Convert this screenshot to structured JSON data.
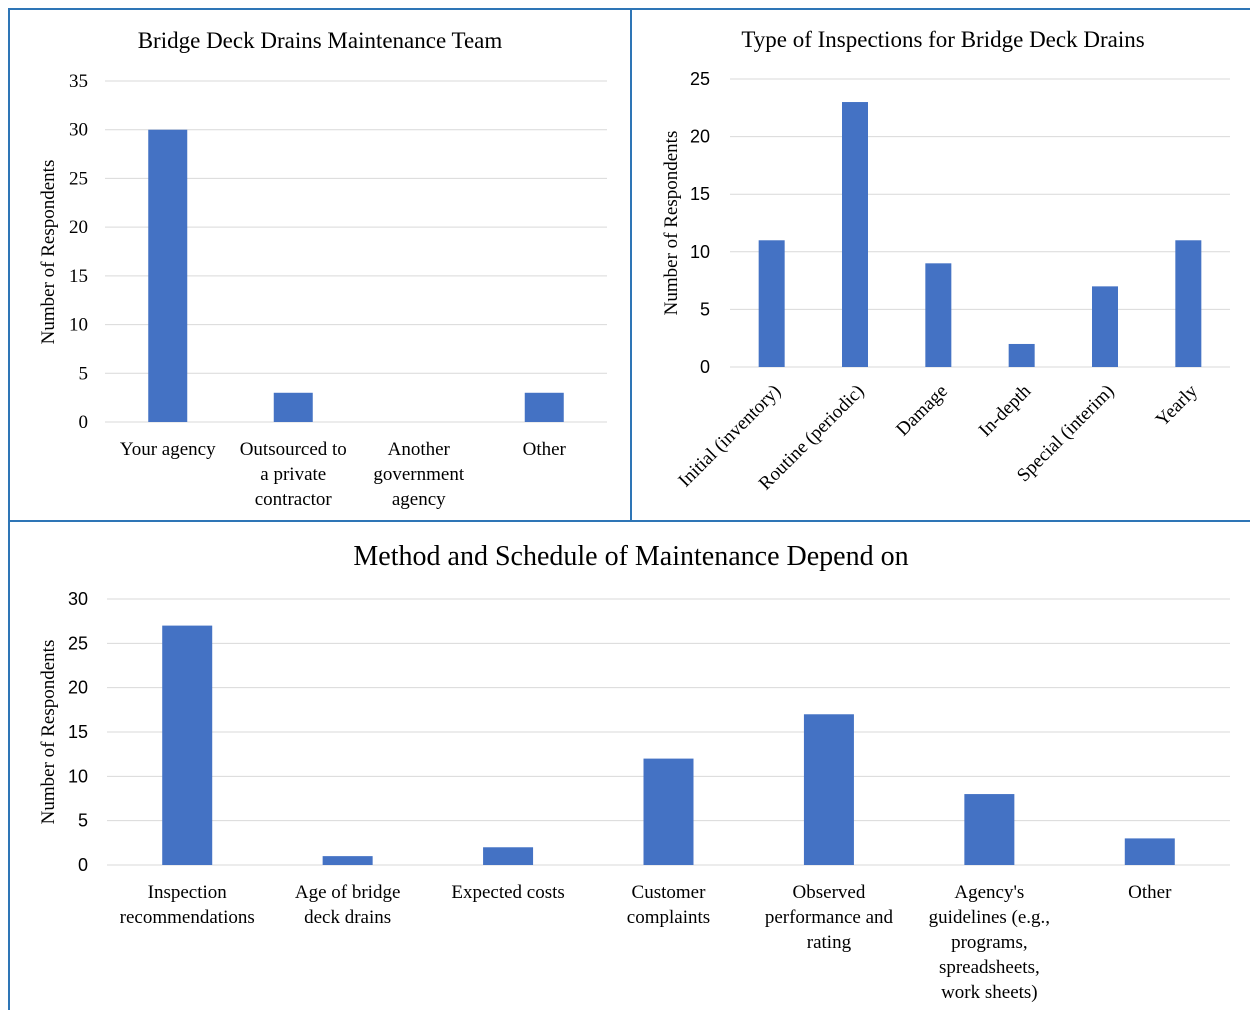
{
  "chart_data": [
    {
      "id": "maintenance_team",
      "type": "bar",
      "title": "Bridge Deck Drains Maintenance Team",
      "xlabel": "",
      "ylabel": "Number of Respondents",
      "categories": [
        [
          "Your agency"
        ],
        [
          "Outsourced to",
          "a private",
          "contractor"
        ],
        [
          "Another",
          "government",
          "agency"
        ],
        [
          "Other"
        ]
      ],
      "values": [
        30,
        3,
        0,
        3
      ],
      "ylim": [
        0,
        35
      ],
      "yticks": [
        0,
        5,
        10,
        15,
        20,
        25,
        30,
        35
      ],
      "grid": true,
      "color": "#4472C4"
    },
    {
      "id": "inspection_types",
      "type": "bar",
      "title": "Type of Inspections for Bridge Deck Drains",
      "xlabel": "",
      "ylabel": "Number of Respondents",
      "categories": [
        [
          "Initial (inventory)"
        ],
        [
          "Routine (periodic)"
        ],
        [
          "Damage"
        ],
        [
          "In-depth"
        ],
        [
          "Special (interim)"
        ],
        [
          "Yearly"
        ]
      ],
      "values": [
        11,
        23,
        9,
        2,
        7,
        11
      ],
      "ylim": [
        0,
        25
      ],
      "yticks": [
        0,
        5,
        10,
        15,
        20,
        25
      ],
      "grid": true,
      "color": "#4472C4"
    },
    {
      "id": "method_schedule",
      "type": "bar",
      "title": "Method and Schedule of Maintenance Depend on",
      "xlabel": "",
      "ylabel": "Number of Respondents",
      "categories": [
        [
          "Inspection",
          "recommendations"
        ],
        [
          "Age of bridge",
          "deck drains"
        ],
        [
          "Expected costs"
        ],
        [
          "Customer",
          "complaints"
        ],
        [
          "Observed",
          "performance and",
          "rating"
        ],
        [
          "Agency's",
          "guidelines (e.g.,",
          "programs,",
          "spreadsheets,",
          "work sheets)"
        ],
        [
          "Other"
        ]
      ],
      "values": [
        27,
        1,
        2,
        12,
        17,
        8,
        3
      ],
      "ylim": [
        0,
        30
      ],
      "yticks": [
        0,
        5,
        10,
        15,
        20,
        25,
        30
      ],
      "grid": true,
      "color": "#4472C4"
    }
  ],
  "colors": {
    "bar": "#4472C4",
    "grid": "#d9d9d9",
    "border": "#2e75b6"
  }
}
